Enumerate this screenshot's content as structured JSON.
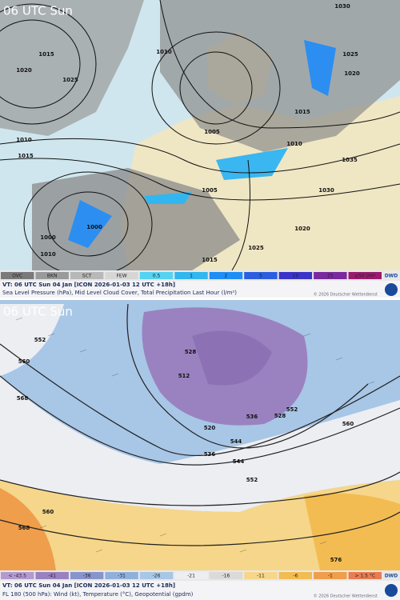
{
  "panels": [
    {
      "title": "06 UTC Sun",
      "legend": [
        {
          "label": "OVC",
          "color": "#7a7a7a"
        },
        {
          "label": "BKN",
          "color": "#9a9a9a"
        },
        {
          "label": "SCT",
          "color": "#b8b8b8"
        },
        {
          "label": "FEW",
          "color": "#d6d6d6"
        },
        {
          "label": "0.5",
          "color": "#56d2f2"
        },
        {
          "label": "1",
          "color": "#32b6f0"
        },
        {
          "label": "2",
          "color": "#1e8ef5"
        },
        {
          "label": "5",
          "color": "#2c5fe0"
        },
        {
          "label": "10",
          "color": "#3a35c8"
        },
        {
          "label": "25",
          "color": "#7a2a9e"
        },
        {
          "label": "≥50 l/m²",
          "color": "#9a1b6e"
        }
      ],
      "caption_line1": "VT: 06 UTC Sun  04 Jan [ICON 2026-01-03 12 UTC +18h]",
      "caption_line2": "Sea Level Pressure (hPa), Mid Level Cloud Cover, Total Precipitation Last Hour (l/m²)",
      "copyright": "© 2026 Deutscher Wetterdienst",
      "logo": "DWD",
      "contour_labels": [
        "1030",
        "1025",
        "1020",
        "1015",
        "1010",
        "1005",
        "1000",
        "1010",
        "1015",
        "1020",
        "1025",
        "1030",
        "1035",
        "1015",
        "1010",
        "1005",
        "1000",
        "1015",
        "1020",
        "1025",
        "1010"
      ]
    },
    {
      "title": "06 UTC Sun",
      "legend": [
        {
          "label": "< -43.5",
          "color": "#b39ad0"
        },
        {
          "label": "-41",
          "color": "#9a82c0"
        },
        {
          "label": "-36",
          "color": "#8894cc"
        },
        {
          "label": "-31",
          "color": "#90b0dc"
        },
        {
          "label": "-26",
          "color": "#a8c6e6"
        },
        {
          "label": "-21",
          "color": "#eceef2"
        },
        {
          "label": "-16",
          "color": "#dadada"
        },
        {
          "label": "-11",
          "color": "#f6d68a"
        },
        {
          "label": "-6",
          "color": "#f3bc52"
        },
        {
          "label": "-1",
          "color": "#ef9e4c"
        },
        {
          "label": "> 1.5 °C",
          "color": "#e87c52"
        }
      ],
      "caption_line1": "VT: 06 UTC Sun  04 Jan [ICON 2026-01-03 12 UTC +18h]",
      "caption_line2": "FL 180 (500 hPa): Wind (kt), Temperature (°C), Geopotential (gpdm)",
      "copyright": "© 2026 Deutscher Wetterdienst",
      "logo": "DWD",
      "contour_labels": [
        "552",
        "560",
        "568",
        "528",
        "520",
        "512",
        "536",
        "544",
        "552",
        "560",
        "536",
        "544",
        "552",
        "528",
        "560",
        "568",
        "576"
      ]
    }
  ]
}
